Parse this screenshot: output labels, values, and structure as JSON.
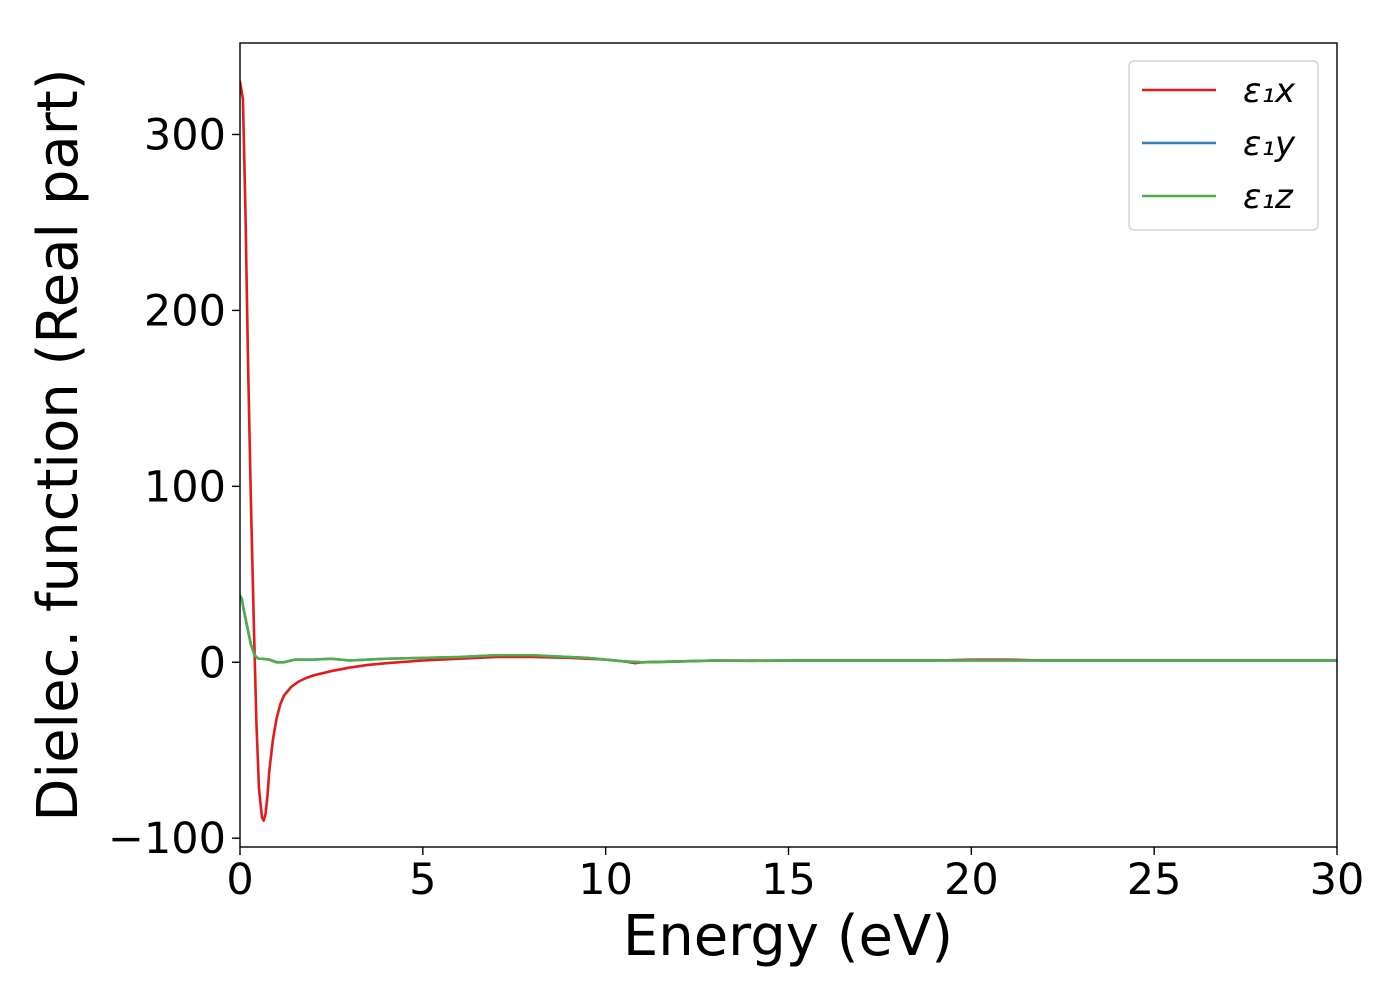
{
  "chart_data": {
    "type": "line",
    "title": "",
    "xlabel": "Energy (eV)",
    "ylabel": "Dielec. function (Real part)",
    "xlim": [
      0,
      30
    ],
    "ylim": [
      -105,
      352
    ],
    "xticks": [
      0,
      5,
      10,
      15,
      20,
      25,
      30
    ],
    "xtick_labels": [
      "0",
      "5",
      "10",
      "15",
      "20",
      "25",
      "30"
    ],
    "yticks": [
      -100,
      0,
      100,
      200,
      300
    ],
    "ytick_labels": [
      "−100",
      "0",
      "100",
      "200",
      "300"
    ],
    "grid": false,
    "legend": "top-right",
    "series": [
      {
        "name": "ε₁x",
        "color": "#e41a1c",
        "x": [
          0,
          0.08,
          0.15,
          0.22,
          0.3,
          0.38,
          0.45,
          0.52,
          0.6,
          0.65,
          0.7,
          0.75,
          0.8,
          0.9,
          1.0,
          1.1,
          1.2,
          1.4,
          1.6,
          1.8,
          2.0,
          2.5,
          3.0,
          3.5,
          4.0,
          5.0,
          6.0,
          7.0,
          8.0,
          9.0,
          10.0,
          10.5,
          10.8,
          11.0,
          12.0,
          13.0,
          14.0,
          15.0,
          16.0,
          17.0,
          18.0,
          19.0,
          20.0,
          21.0,
          22.0,
          23.0,
          24.0,
          25.0,
          26.0,
          27.0,
          28.0,
          29.0,
          30.0
        ],
        "values": [
          330,
          320,
          255,
          170,
          90,
          20,
          -35,
          -72,
          -88,
          -90,
          -86,
          -76,
          -62,
          -44,
          -32,
          -24,
          -19,
          -14,
          -11,
          -9,
          -7.5,
          -5,
          -3,
          -1.5,
          -0.5,
          1,
          2,
          3,
          3,
          2.5,
          1.5,
          0.5,
          -0.5,
          0,
          0.5,
          1,
          1,
          1,
          1,
          1,
          1,
          1,
          1.5,
          1.5,
          1,
          1,
          1,
          1,
          1,
          1,
          1,
          1,
          1
        ]
      },
      {
        "name": "ε₁y",
        "color": "#377eb8",
        "x": [
          0,
          0.05,
          0.1,
          0.2,
          0.3,
          0.4,
          0.5,
          0.6,
          0.8,
          1.0,
          1.2,
          1.5,
          2.0,
          2.5,
          3.0,
          4.0,
          5.0,
          6.0,
          7.0,
          8.0,
          9.0,
          9.5,
          10.0,
          10.5,
          11.0,
          12.0,
          13.0,
          14.0,
          15.0,
          16.0,
          17.0,
          18.0,
          19.0,
          20.0,
          21.0,
          22.0,
          23.0,
          24.0,
          25.0,
          26.0,
          27.0,
          28.0,
          29.0,
          30.0
        ],
        "values": [
          38,
          36,
          30,
          20,
          10,
          4,
          2,
          2,
          1.5,
          0,
          0,
          1.5,
          1.5,
          2,
          1,
          2,
          2.5,
          3,
          4,
          4,
          3,
          2.5,
          1.5,
          0.5,
          0,
          0.5,
          1,
          0.8,
          1,
          1,
          1,
          1,
          1,
          1,
          1,
          1,
          1,
          1,
          1,
          1,
          1,
          1,
          1,
          1
        ]
      },
      {
        "name": "ε₁z",
        "color": "#4daf4a",
        "x": [
          0,
          0.05,
          0.1,
          0.2,
          0.3,
          0.4,
          0.5,
          0.6,
          0.8,
          1.0,
          1.2,
          1.5,
          2.0,
          2.5,
          3.0,
          4.0,
          5.0,
          6.0,
          7.0,
          8.0,
          9.0,
          9.5,
          10.0,
          10.5,
          11.0,
          12.0,
          13.0,
          14.0,
          15.0,
          16.0,
          17.0,
          18.0,
          19.0,
          20.0,
          21.0,
          22.0,
          23.0,
          24.0,
          25.0,
          26.0,
          27.0,
          28.0,
          29.0,
          30.0
        ],
        "values": [
          38,
          36,
          30,
          20,
          10,
          4,
          2,
          2,
          1.5,
          0,
          0,
          1.5,
          1.5,
          2,
          1,
          2,
          2.5,
          3,
          4,
          4,
          3,
          2.5,
          1.5,
          0.5,
          0,
          0.5,
          1,
          0.8,
          1,
          1,
          1,
          1,
          1,
          1,
          1,
          1,
          1,
          1,
          1,
          1,
          1,
          1,
          1,
          1
        ]
      }
    ]
  }
}
